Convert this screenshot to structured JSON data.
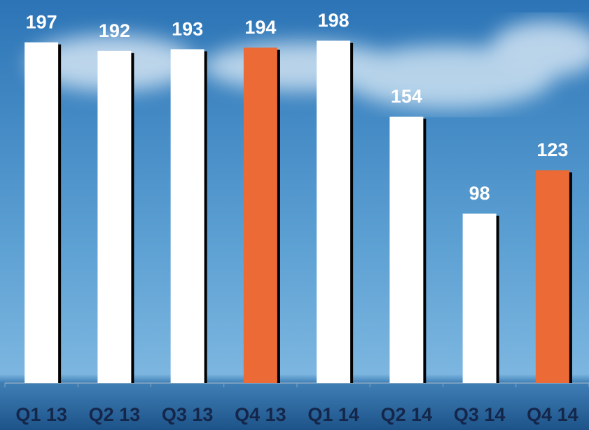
{
  "chart_data": {
    "type": "bar",
    "categories": [
      "Q1 13",
      "Q2 13",
      "Q3 13",
      "Q4 13",
      "Q1 14",
      "Q2 14",
      "Q3 14",
      "Q4 14"
    ],
    "values": [
      197,
      192,
      193,
      194,
      198,
      154,
      98,
      123
    ],
    "colors": [
      "#ffffff",
      "#ffffff",
      "#ffffff",
      "#ec6a35",
      "#ffffff",
      "#ffffff",
      "#ffffff",
      "#ec6a35"
    ]
  }
}
